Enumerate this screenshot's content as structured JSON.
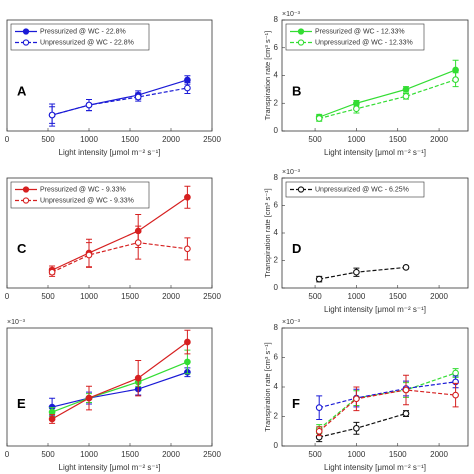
{
  "chart_data": [
    {
      "type": "line",
      "panel": "A",
      "xlabel": "Light intensity [μmol m⁻² s⁻¹]",
      "xlim": [
        0,
        2500
      ],
      "xticks": [
        0,
        500,
        1000,
        1500,
        2000,
        2500
      ],
      "ylim": [
        0,
        8
      ],
      "legend": "upper left",
      "series": [
        {
          "name": "Pressurized @ WC - 22.8%",
          "color": "#1a1ad6",
          "linestyle": "solid",
          "filled": true,
          "x": [
            550,
            1000,
            1600,
            2200
          ],
          "values": [
            1.15,
            1.87,
            2.59,
            3.68
          ],
          "errors": [
            0.8,
            0.4,
            0.3,
            0.3
          ]
        },
        {
          "name": "Unpressurized @ WC - 22.8%",
          "color": "#1a1ad6",
          "linestyle": "dashed",
          "filled": false,
          "x": [
            550,
            1000,
            1600,
            2200
          ],
          "values": [
            1.15,
            1.87,
            2.45,
            3.1
          ],
          "errors": [
            0.6,
            0.4,
            0.3,
            0.4
          ]
        }
      ]
    },
    {
      "type": "line",
      "panel": "B",
      "xlabel": "Light intensity [μmol m⁻² s⁻¹]",
      "ylabel": "Transpiration rate [cm³ s⁻¹]",
      "exponent": "×10⁻³",
      "xlim": [
        100,
        2350
      ],
      "xticks": [
        500,
        1000,
        1500,
        2000
      ],
      "ylim": [
        0,
        8
      ],
      "yticks": [
        0,
        2,
        4,
        6,
        8
      ],
      "legend": "upper left",
      "series": [
        {
          "name": "Pressurized @ WC - 12.33%",
          "color": "#33dd33",
          "linestyle": "solid",
          "filled": true,
          "x": [
            550,
            1000,
            1600,
            2200
          ],
          "values": [
            1.0,
            2.0,
            3.0,
            4.4
          ],
          "errors": [
            0.2,
            0.2,
            0.2,
            0.7
          ]
        },
        {
          "name": "Unpressurized @ WC - 12.33%",
          "color": "#33dd33",
          "linestyle": "dashed",
          "filled": false,
          "x": [
            550,
            1000,
            1600,
            2200
          ],
          "values": [
            0.9,
            1.6,
            2.5,
            3.7
          ],
          "errors": [
            0.2,
            0.3,
            0.2,
            0.5
          ]
        }
      ]
    },
    {
      "type": "line",
      "panel": "C",
      "xlim": [
        0,
        2500
      ],
      "xticks": [
        0,
        500,
        1000,
        1500,
        2000,
        2500
      ],
      "ylim": [
        0,
        8
      ],
      "legend": "upper left",
      "series": [
        {
          "name": "Pressurized @ WC - 9.33%",
          "color": "#d62020",
          "linestyle": "solid",
          "filled": true,
          "x": [
            550,
            1000,
            1600,
            2200
          ],
          "values": [
            1.3,
            2.55,
            4.15,
            6.6
          ],
          "errors": [
            0.3,
            1.0,
            1.2,
            0.8
          ]
        },
        {
          "name": "Unpressurized @ WC - 9.33%",
          "color": "#d62020",
          "linestyle": "dashed",
          "filled": false,
          "x": [
            550,
            1000,
            1600,
            2200
          ],
          "values": [
            1.15,
            2.4,
            3.3,
            2.85
          ],
          "errors": [
            0.3,
            0.9,
            1.2,
            0.8
          ]
        }
      ]
    },
    {
      "type": "line",
      "panel": "D",
      "xlabel": "Light intensity [μmol m⁻² s⁻¹]",
      "ylabel": "Transpiration rate [cm³ s⁻¹]",
      "exponent": "×10⁻³",
      "xlim": [
        100,
        2350
      ],
      "xticks": [
        500,
        1000,
        1500,
        2000
      ],
      "ylim": [
        0,
        8
      ],
      "yticks": [
        0,
        2,
        4,
        6,
        8
      ],
      "legend": "upper left",
      "series": [
        {
          "name": "Unpressurized @ WC - 6.25%",
          "color": "#111111",
          "linestyle": "dashed",
          "filled": false,
          "x": [
            550,
            1000,
            1600
          ],
          "values": [
            0.65,
            1.15,
            1.5
          ],
          "errors": [
            0.2,
            0.3,
            0.1
          ]
        }
      ]
    },
    {
      "type": "line",
      "panel": "E",
      "xlabel": "Light intensity [μmol m⁻² s⁻¹]",
      "exponent": "×10⁻³",
      "xlim": [
        0,
        2500
      ],
      "xticks": [
        0,
        500,
        1000,
        1500,
        2000,
        2500
      ],
      "ylim": [
        0,
        8
      ],
      "series": [
        {
          "color": "#1a1ad6",
          "linestyle": "solid",
          "filled": true,
          "x": [
            550,
            1000,
            1600,
            2200
          ],
          "values": [
            2.64,
            3.25,
            3.86,
            5.0
          ],
          "errors": [
            0.6,
            0.4,
            0.4,
            0.3
          ]
        },
        {
          "color": "#33dd33",
          "linestyle": "solid",
          "filled": true,
          "x": [
            550,
            1000,
            1600,
            2200
          ],
          "values": [
            2.3,
            3.25,
            4.34,
            5.7
          ],
          "errors": [
            0.3,
            0.3,
            0.3,
            0.8
          ]
        },
        {
          "color": "#d62020",
          "linestyle": "solid",
          "filled": true,
          "x": [
            550,
            1000,
            1600,
            2200
          ],
          "values": [
            1.83,
            3.25,
            4.6,
            7.05
          ],
          "errors": [
            0.3,
            0.8,
            1.2,
            0.8
          ]
        }
      ]
    },
    {
      "type": "line",
      "panel": "F",
      "xlabel": "Light intensity [μmol m⁻² s⁻¹]",
      "ylabel": "Transpiration rate [cm³ s⁻¹]",
      "exponent": "×10⁻³",
      "xlim": [
        100,
        2350
      ],
      "xticks": [
        500,
        1000,
        1500,
        2000
      ],
      "ylim": [
        0,
        8
      ],
      "yticks": [
        0,
        2,
        4,
        6,
        8
      ],
      "series": [
        {
          "color": "#111111",
          "linestyle": "dashed",
          "filled": false,
          "x": [
            550,
            1000,
            1600
          ],
          "values": [
            0.6,
            1.2,
            2.2
          ],
          "errors": [
            0.3,
            0.4,
            0.2
          ]
        },
        {
          "color": "#33dd33",
          "linestyle": "dashed",
          "filled": false,
          "x": [
            550,
            1000,
            1600,
            2200
          ],
          "values": [
            1.15,
            3.25,
            3.8,
            4.95
          ],
          "errors": [
            0.3,
            0.5,
            0.5,
            0.3
          ]
        },
        {
          "color": "#1a1ad6",
          "linestyle": "dashed",
          "filled": false,
          "x": [
            550,
            1000,
            1600,
            2200
          ],
          "values": [
            2.6,
            3.25,
            3.9,
            4.35
          ],
          "errors": [
            0.8,
            0.6,
            0.5,
            0.4
          ]
        },
        {
          "color": "#d62020",
          "linestyle": "dashed",
          "filled": false,
          "x": [
            550,
            1000,
            1600,
            2200
          ],
          "values": [
            1.0,
            3.2,
            3.8,
            3.45
          ],
          "errors": [
            0.3,
            0.8,
            1.0,
            0.8
          ]
        }
      ]
    }
  ]
}
